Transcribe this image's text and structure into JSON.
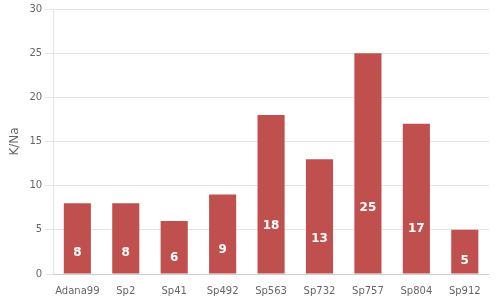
{
  "chart_data": {
    "type": "bar",
    "categories": [
      "Adana99",
      "Sp2",
      "Sp41",
      "Sp492",
      "Sp563",
      "Sp732",
      "Sp757",
      "Sp804",
      "Sp912"
    ],
    "values": [
      8,
      8,
      6,
      9,
      18,
      13,
      25,
      17,
      5
    ],
    "color": "#c0504d",
    "ylabel": "K/Na",
    "ylim": [
      0,
      30
    ],
    "yticks": [
      0,
      5,
      10,
      15,
      20,
      25,
      30
    ],
    "grid": true,
    "data_labels": true
  }
}
